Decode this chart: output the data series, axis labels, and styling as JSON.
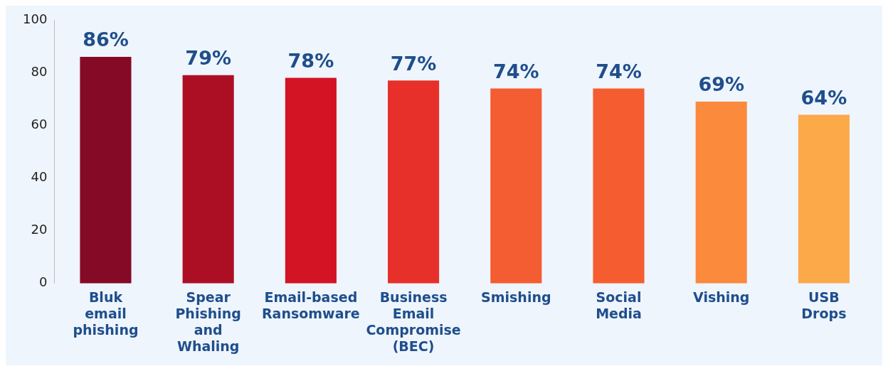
{
  "chart_data": {
    "type": "bar",
    "categories": [
      "Bluk email phishing",
      "Spear Phishing and Whaling",
      "Email-based Ransomware",
      "Business Email Compromise (BEC)",
      "Smishing",
      "Social Media",
      "Vishing",
      "USB Drops"
    ],
    "values": [
      86,
      79,
      78,
      77,
      74,
      74,
      69,
      64
    ],
    "colors": [
      "#850a25",
      "#ac0f24",
      "#d21424",
      "#e8302a",
      "#f45c31",
      "#f55d30",
      "#fb8a3d",
      "#fca94a"
    ],
    "value_labels": [
      "86%",
      "79%",
      "78%",
      "77%",
      "74%",
      "74%",
      "69%",
      "64%"
    ],
    "ylim": [
      0,
      100
    ],
    "yticks": [
      0,
      20,
      40,
      60,
      80,
      100
    ],
    "grid": false,
    "legend": false
  }
}
